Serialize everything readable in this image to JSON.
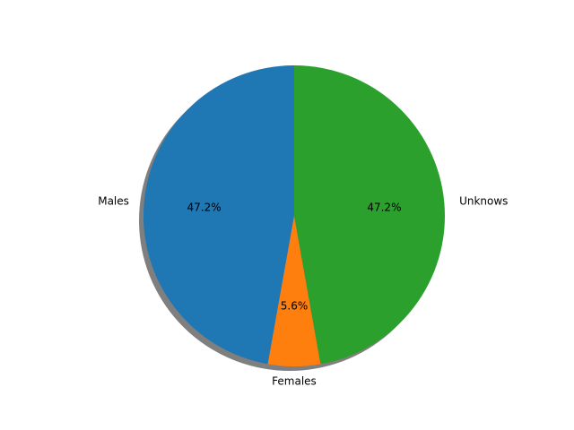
{
  "chart_data": {
    "type": "pie",
    "start_angle_deg": 90,
    "direction": "counterclockwise",
    "shadow": true,
    "slices": [
      {
        "label": "Males",
        "value": 47.2,
        "pct_label": "47.2%",
        "color": "#1f77b4"
      },
      {
        "label": "Females",
        "value": 5.6,
        "pct_label": "5.6%",
        "color": "#ff7f0e"
      },
      {
        "label": "Unknows",
        "value": 47.2,
        "pct_label": "47.2%",
        "color": "#2ca02c"
      }
    ]
  }
}
